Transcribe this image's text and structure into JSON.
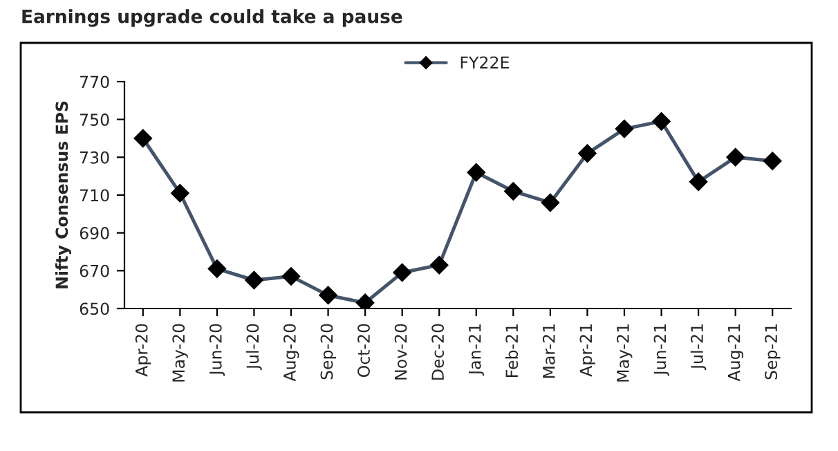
{
  "chart_data": {
    "type": "line",
    "title": "Earnings upgrade could take a pause",
    "ylabel": "Nifty Consensus EPS",
    "categories": [
      "Apr-20",
      "May-20",
      "Jun-20",
      "Jul-20",
      "Aug-20",
      "Sep-20",
      "Oct-20",
      "Nov-20",
      "Dec-20",
      "Jan-21",
      "Feb-21",
      "Mar-21",
      "Apr-21",
      "May-21",
      "Jun-21",
      "Jul-21",
      "Aug-21",
      "Sep-21"
    ],
    "series": [
      {
        "name": "FY22E",
        "color": "#44546a",
        "values": [
          740,
          711,
          671,
          665,
          667,
          657,
          653,
          669,
          673,
          722,
          712,
          706,
          732,
          745,
          749,
          717,
          730,
          728
        ]
      }
    ],
    "ylim": [
      650,
      770
    ],
    "yticks": [
      650,
      670,
      690,
      710,
      730,
      750,
      770
    ],
    "marker": "diamond",
    "line_style": "solid",
    "legend": "top",
    "grid": false
  }
}
